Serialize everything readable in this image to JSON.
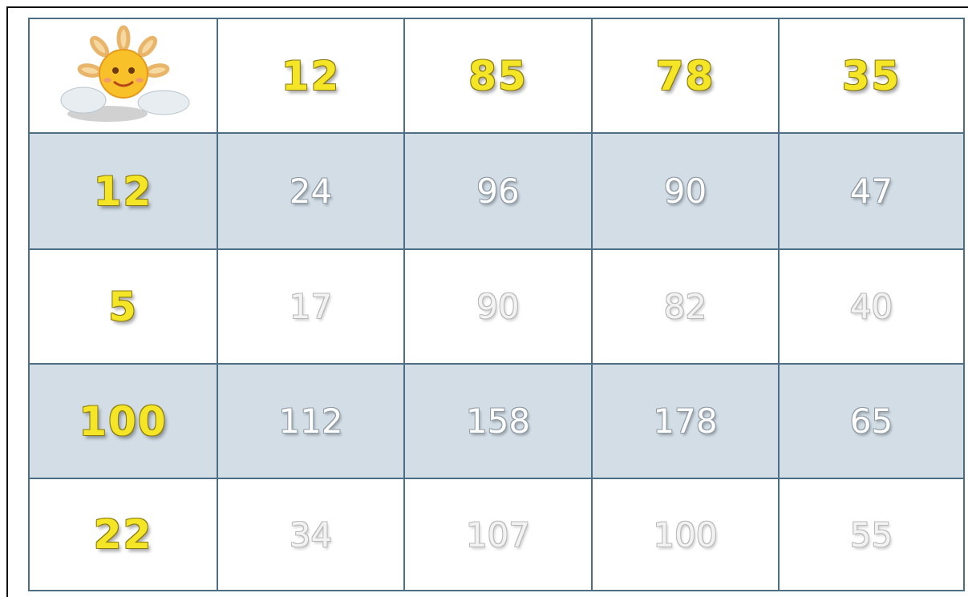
{
  "table": {
    "header": [
      12,
      85,
      78,
      35
    ],
    "rows": [
      {
        "label": 12,
        "cells": [
          24,
          96,
          90,
          47
        ]
      },
      {
        "label": 5,
        "cells": [
          17,
          90,
          82,
          40
        ]
      },
      {
        "label": 100,
        "cells": [
          112,
          158,
          178,
          65
        ]
      },
      {
        "label": 22,
        "cells": [
          34,
          107,
          100,
          55
        ]
      }
    ]
  }
}
